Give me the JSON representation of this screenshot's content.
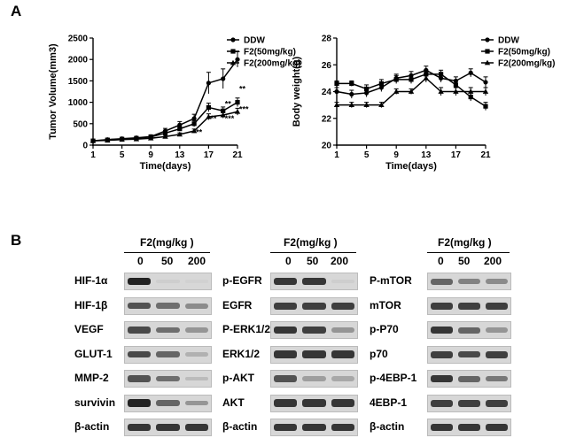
{
  "panel_a": {
    "letter": "A"
  },
  "panel_b": {
    "letter": "B"
  },
  "chart_data": [
    {
      "type": "line",
      "ylabel": "Tumor Volume(mm3)",
      "xlabel": "Time(days)",
      "xlim": [
        1,
        21
      ],
      "ylim": [
        0,
        2500
      ],
      "x_ticks": [
        1,
        5,
        9,
        13,
        17,
        21
      ],
      "y_ticks": [
        0,
        500,
        1000,
        1500,
        2000,
        2500
      ],
      "legend_position": "top-right",
      "x": [
        1,
        3,
        5,
        7,
        9,
        11,
        13,
        15,
        17,
        19,
        21
      ],
      "series": [
        {
          "name": "DDW",
          "marker": "circle",
          "values": [
            100,
            130,
            150,
            170,
            200,
            330,
            470,
            620,
            1450,
            1550,
            2000
          ],
          "errors": [
            30,
            30,
            30,
            30,
            40,
            60,
            80,
            100,
            250,
            230,
            180
          ]
        },
        {
          "name": "F2(50mg/kg)",
          "marker": "square",
          "values": [
            100,
            120,
            140,
            160,
            190,
            280,
            380,
            500,
            880,
            800,
            1000
          ],
          "errors": [
            20,
            20,
            25,
            25,
            30,
            40,
            50,
            70,
            100,
            90,
            100
          ]
        },
        {
          "name": "F2(200mg/kg)",
          "marker": "triangle",
          "values": [
            100,
            110,
            130,
            140,
            160,
            200,
            250,
            330,
            660,
            700,
            780
          ],
          "errors": [
            20,
            20,
            20,
            20,
            25,
            30,
            35,
            45,
            70,
            70,
            80
          ]
        }
      ],
      "annotations": [
        {
          "text": "**",
          "x": 15,
          "y": 240
        },
        {
          "text": "**",
          "x": 17,
          "y": 560
        },
        {
          "text": "**",
          "x": 19,
          "y": 900
        },
        {
          "text": "***",
          "x": 19,
          "y": 560
        },
        {
          "text": "**",
          "x": 21,
          "y": 1250
        },
        {
          "text": "***",
          "x": 21,
          "y": 770
        }
      ]
    },
    {
      "type": "line",
      "ylabel": "Body weight(g)",
      "xlabel": "Time(days)",
      "xlim": [
        1,
        21
      ],
      "ylim": [
        20,
        28
      ],
      "x_ticks": [
        1,
        5,
        9,
        13,
        17,
        21
      ],
      "y_ticks": [
        20,
        22,
        24,
        26,
        28
      ],
      "legend_position": "top-right",
      "x": [
        1,
        3,
        5,
        7,
        9,
        11,
        13,
        15,
        17,
        19,
        21
      ],
      "series": [
        {
          "name": "DDW",
          "marker": "circle",
          "values": [
            24.0,
            23.8,
            23.9,
            24.3,
            25.0,
            25.2,
            25.6,
            25.0,
            24.8,
            25.4,
            24.7
          ],
          "errors": [
            0.3,
            0.3,
            0.3,
            0.3,
            0.3,
            0.3,
            0.3,
            0.3,
            0.3,
            0.3,
            0.4
          ]
        },
        {
          "name": "F2(50mg/kg)",
          "marker": "square",
          "values": [
            24.6,
            24.6,
            24.2,
            24.6,
            24.9,
            24.9,
            25.3,
            25.3,
            24.5,
            23.6,
            22.9
          ],
          "errors": [
            0.2,
            0.2,
            0.3,
            0.3,
            0.3,
            0.3,
            0.3,
            0.3,
            0.3,
            0.3,
            0.3
          ]
        },
        {
          "name": "F2(200mg/kg)",
          "marker": "triangle",
          "values": [
            23.0,
            23.0,
            23.0,
            23.0,
            24.0,
            24.0,
            25.0,
            24.0,
            24.0,
            24.0,
            24.0
          ],
          "errors": [
            0.2,
            0.2,
            0.2,
            0.2,
            0.2,
            0.2,
            0.3,
            0.3,
            0.3,
            0.3,
            0.3
          ]
        }
      ]
    }
  ],
  "blots": [
    {
      "header": "F2(mg/kg )",
      "doses": [
        "0",
        "50",
        "200"
      ],
      "rows": [
        {
          "label": "HIF-1α",
          "intensity": [
            0.95,
            0.05,
            0.03
          ]
        },
        {
          "label": "HIF-1β",
          "intensity": [
            0.7,
            0.55,
            0.4
          ]
        },
        {
          "label": "VEGF",
          "intensity": [
            0.75,
            0.55,
            0.35
          ]
        },
        {
          "label": "GLUT-1",
          "intensity": [
            0.75,
            0.6,
            0.2
          ]
        },
        {
          "label": "MMP-2",
          "intensity": [
            0.7,
            0.55,
            0.15
          ]
        },
        {
          "label": "survivin",
          "intensity": [
            0.95,
            0.6,
            0.35
          ]
        },
        {
          "label": "β-actin",
          "intensity": [
            0.85,
            0.85,
            0.85
          ]
        }
      ]
    },
    {
      "header": "F2(mg/kg )",
      "doses": [
        "0",
        "50",
        "200"
      ],
      "rows": [
        {
          "label": "p-EGFR",
          "intensity": [
            0.85,
            0.85,
            0.05
          ]
        },
        {
          "label": "EGFR",
          "intensity": [
            0.8,
            0.8,
            0.8
          ]
        },
        {
          "label": "P-ERK1/2",
          "intensity": [
            0.85,
            0.8,
            0.35
          ]
        },
        {
          "label": "ERK1/2",
          "intensity": [
            0.85,
            0.85,
            0.85
          ]
        },
        {
          "label": "p-AKT",
          "intensity": [
            0.7,
            0.3,
            0.25
          ]
        },
        {
          "label": "AKT",
          "intensity": [
            0.85,
            0.85,
            0.85
          ]
        },
        {
          "label": "β-actin",
          "intensity": [
            0.85,
            0.85,
            0.85
          ]
        }
      ]
    },
    {
      "header": "F2(mg/kg )",
      "doses": [
        "0",
        "50",
        "200"
      ],
      "rows": [
        {
          "label": "P-mTOR",
          "intensity": [
            0.6,
            0.45,
            0.4
          ]
        },
        {
          "label": "mTOR",
          "intensity": [
            0.8,
            0.8,
            0.8
          ]
        },
        {
          "label": "p-P70",
          "intensity": [
            0.85,
            0.6,
            0.35
          ]
        },
        {
          "label": "p70",
          "intensity": [
            0.8,
            0.75,
            0.8
          ]
        },
        {
          "label": "p-4EBP-1",
          "intensity": [
            0.85,
            0.6,
            0.5
          ]
        },
        {
          "label": "4EBP-1",
          "intensity": [
            0.8,
            0.8,
            0.8
          ]
        },
        {
          "label": "β-actin",
          "intensity": [
            0.85,
            0.85,
            0.85
          ]
        }
      ]
    }
  ]
}
